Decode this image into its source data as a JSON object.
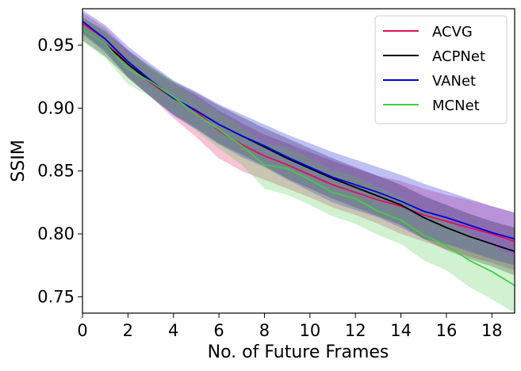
{
  "chart_data": {
    "type": "line",
    "xlabel": "No. of Future Frames",
    "ylabel": "SSIM",
    "xlim": [
      0,
      19
    ],
    "ylim": [
      0.737,
      0.979
    ],
    "xticks": [
      0,
      2,
      4,
      6,
      8,
      10,
      12,
      14,
      16,
      18
    ],
    "yticks": [
      0.75,
      0.8,
      0.85,
      0.9,
      0.95
    ],
    "ytick_labels": [
      "0.75",
      "0.80",
      "0.85",
      "0.90",
      "0.95"
    ],
    "grid": false,
    "legend_position": "top-right",
    "x": [
      0,
      1,
      2,
      3,
      4,
      5,
      6,
      7,
      8,
      9,
      10,
      11,
      12,
      13,
      14,
      15,
      16,
      17,
      18,
      19
    ],
    "series": [
      {
        "name": "ACVG",
        "color": "#e0105a",
        "values": [
          0.967,
          0.955,
          0.935,
          0.92,
          0.908,
          0.897,
          0.882,
          0.871,
          0.862,
          0.855,
          0.847,
          0.839,
          0.833,
          0.827,
          0.822,
          0.815,
          0.81,
          0.805,
          0.8,
          0.794
        ],
        "upper": [
          0.976,
          0.964,
          0.946,
          0.931,
          0.92,
          0.91,
          0.898,
          0.888,
          0.879,
          0.872,
          0.865,
          0.858,
          0.852,
          0.846,
          0.842,
          0.836,
          0.831,
          0.827,
          0.822,
          0.817
        ],
        "lower": [
          0.958,
          0.946,
          0.924,
          0.909,
          0.892,
          0.877,
          0.86,
          0.85,
          0.843,
          0.836,
          0.829,
          0.821,
          0.815,
          0.808,
          0.8,
          0.794,
          0.788,
          0.782,
          0.777,
          0.771
        ]
      },
      {
        "name": "ACPNet",
        "color": "#000000",
        "values": [
          0.963,
          0.951,
          0.935,
          0.921,
          0.908,
          0.898,
          0.887,
          0.878,
          0.869,
          0.86,
          0.852,
          0.844,
          0.837,
          0.83,
          0.823,
          0.813,
          0.805,
          0.798,
          0.792,
          0.786
        ],
        "upper": [
          0.972,
          0.961,
          0.946,
          0.933,
          0.921,
          0.912,
          0.902,
          0.893,
          0.884,
          0.876,
          0.868,
          0.86,
          0.853,
          0.846,
          0.839,
          0.83,
          0.823,
          0.816,
          0.81,
          0.805
        ],
        "lower": [
          0.954,
          0.941,
          0.924,
          0.909,
          0.895,
          0.884,
          0.872,
          0.863,
          0.854,
          0.844,
          0.836,
          0.828,
          0.821,
          0.814,
          0.807,
          0.796,
          0.787,
          0.78,
          0.774,
          0.767
        ]
      },
      {
        "name": "VANet",
        "color": "#0000dd",
        "values": [
          0.969,
          0.955,
          0.937,
          0.922,
          0.908,
          0.898,
          0.887,
          0.878,
          0.87,
          0.861,
          0.853,
          0.845,
          0.839,
          0.833,
          0.826,
          0.818,
          0.813,
          0.807,
          0.801,
          0.796
        ],
        "upper": [
          0.978,
          0.966,
          0.949,
          0.935,
          0.922,
          0.913,
          0.903,
          0.895,
          0.887,
          0.879,
          0.872,
          0.865,
          0.859,
          0.853,
          0.847,
          0.84,
          0.834,
          0.828,
          0.822,
          0.817
        ],
        "lower": [
          0.96,
          0.944,
          0.925,
          0.909,
          0.894,
          0.883,
          0.871,
          0.861,
          0.853,
          0.843,
          0.834,
          0.825,
          0.819,
          0.813,
          0.805,
          0.796,
          0.792,
          0.786,
          0.78,
          0.775
        ]
      },
      {
        "name": "MCNet",
        "color": "#44cc44",
        "values": [
          0.963,
          0.951,
          0.931,
          0.921,
          0.909,
          0.895,
          0.883,
          0.87,
          0.855,
          0.852,
          0.843,
          0.833,
          0.828,
          0.818,
          0.811,
          0.799,
          0.791,
          0.779,
          0.77,
          0.759
        ],
        "upper": [
          0.973,
          0.962,
          0.943,
          0.933,
          0.921,
          0.908,
          0.897,
          0.885,
          0.872,
          0.869,
          0.86,
          0.851,
          0.846,
          0.837,
          0.829,
          0.818,
          0.811,
          0.8,
          0.791,
          0.781
        ],
        "lower": [
          0.953,
          0.94,
          0.919,
          0.909,
          0.896,
          0.882,
          0.868,
          0.855,
          0.836,
          0.831,
          0.823,
          0.814,
          0.808,
          0.799,
          0.792,
          0.779,
          0.771,
          0.758,
          0.748,
          0.737
        ]
      }
    ]
  }
}
